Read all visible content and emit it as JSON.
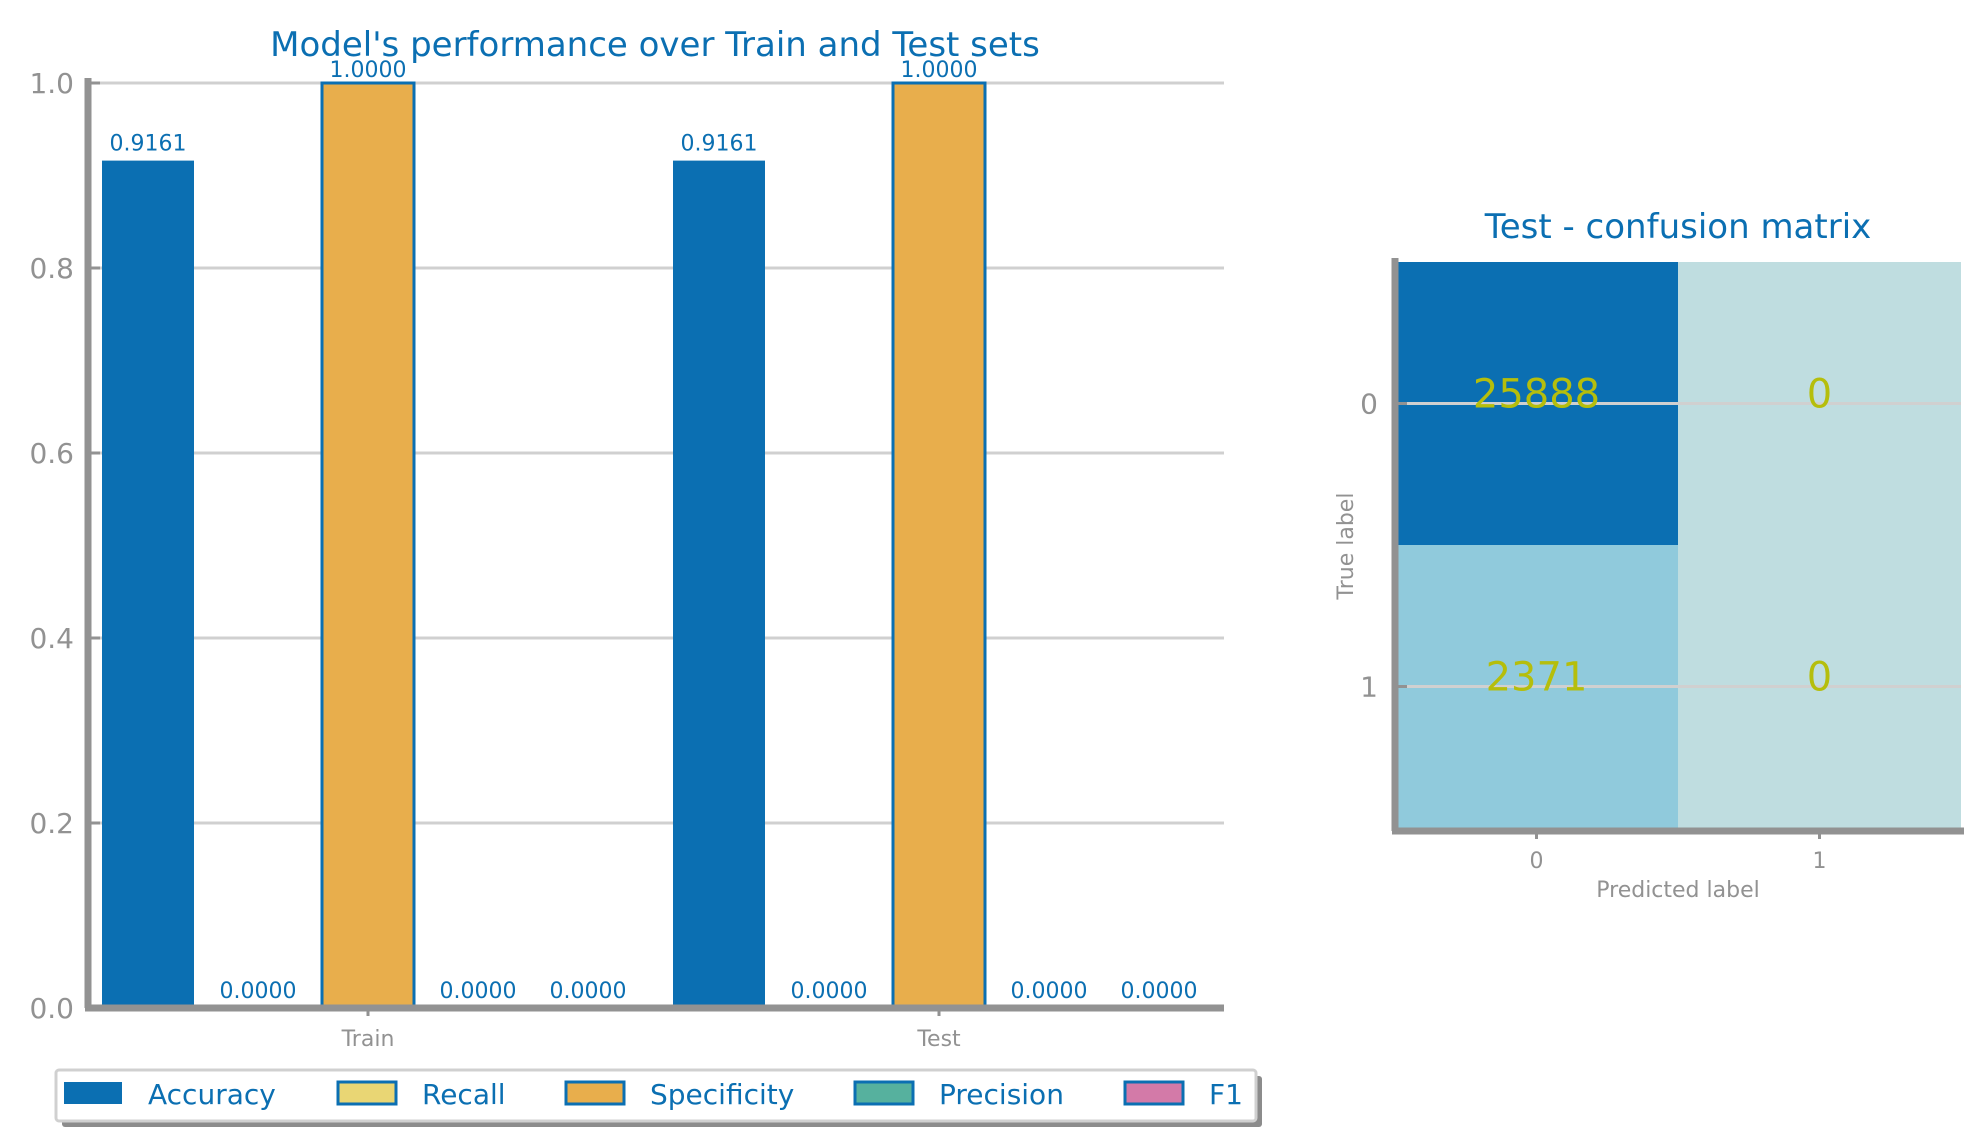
{
  "colors": {
    "accent": "#0b6fb2",
    "axis": "#929292",
    "grid": "#d0d0d0",
    "annotation": "#b5be0c",
    "series": [
      "#0b6fb2",
      "#e9d674",
      "#e8ae4c",
      "#56b19e",
      "#d37aa8"
    ],
    "matrix_high": "#0b6fb2",
    "matrix_mid": "#90cadc",
    "matrix_low": "#bfdde0"
  },
  "chart_data": [
    {
      "type": "bar",
      "title": "Model's performance over Train and Test sets",
      "categories": [
        "Train",
        "Test"
      ],
      "series": [
        {
          "name": "Accuracy",
          "values": [
            0.9161,
            0.9161
          ],
          "labels": [
            "0.9161",
            "0.9161"
          ]
        },
        {
          "name": "Recall",
          "values": [
            0.0,
            0.0
          ],
          "labels": [
            "0.0000",
            "0.0000"
          ]
        },
        {
          "name": "Specificity",
          "values": [
            1.0,
            1.0
          ],
          "labels": [
            "1.0000",
            "1.0000"
          ]
        },
        {
          "name": "Precision",
          "values": [
            0.0,
            0.0
          ],
          "labels": [
            "0.0000",
            "0.0000"
          ]
        },
        {
          "name": "F1",
          "values": [
            0.0,
            0.0
          ],
          "labels": [
            "0.0000",
            "0.0000"
          ]
        }
      ],
      "ylim": [
        0,
        1.0
      ],
      "yticks": [
        "0.0",
        "0.2",
        "0.4",
        "0.6",
        "0.8",
        "1.0"
      ],
      "grid": true,
      "legend": "bottom"
    },
    {
      "type": "heatmap",
      "title": "Test - confusion matrix",
      "xlabel": "Predicted label",
      "ylabel": "True label",
      "xticks": [
        "0",
        "1"
      ],
      "yticks": [
        "0",
        "1"
      ],
      "values": [
        [
          25888,
          0
        ],
        [
          2371,
          0
        ]
      ],
      "labels": [
        [
          "25888",
          "0"
        ],
        [
          "2371",
          "0"
        ]
      ]
    }
  ]
}
